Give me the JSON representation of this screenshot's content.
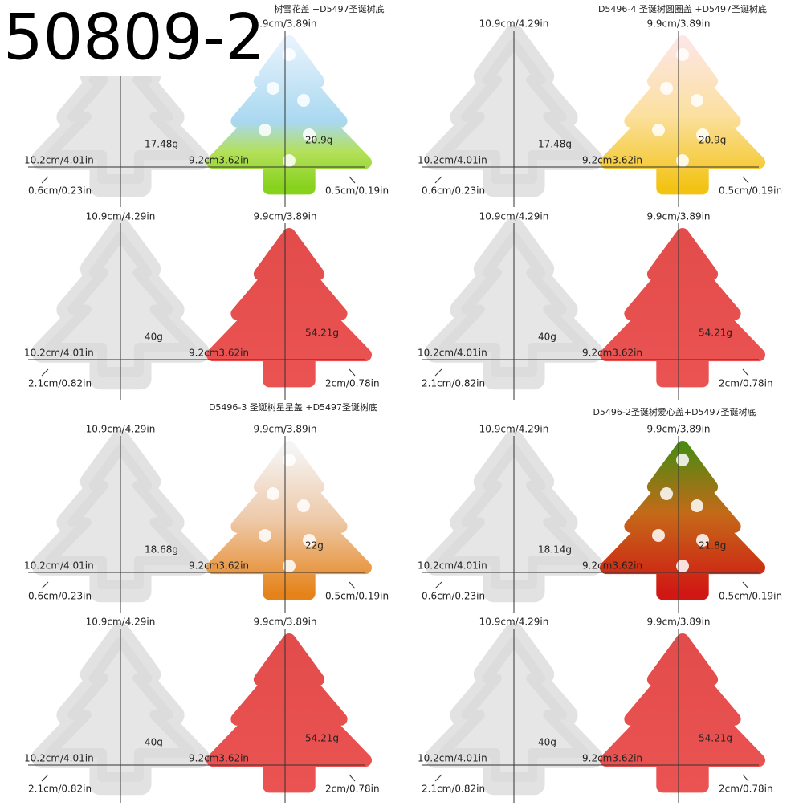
{
  "code": "50809-2",
  "panels": [
    {
      "title": "树雪花盖 +D5497圣诞树底",
      "items": [
        {
          "width": "10.2cm/4.01in",
          "weight": "17.48g",
          "thickness": "0.6cm/0.23in"
        },
        {
          "height": "9.9cm/3.89in",
          "width": "9.2cm3.62in",
          "weight": "20.9g",
          "thickness": "0.5cm/0.19in"
        },
        {
          "height": "10.9cm/4.29in",
          "width": "10.2cm/4.01in",
          "weight": "40g",
          "thickness": "2.1cm/0.82in"
        },
        {
          "height": "9.9cm/3.89in",
          "width": "9.2cm3.62in",
          "weight": "54.21g",
          "thickness": "2cm/0.78in"
        }
      ]
    },
    {
      "title": "D5496-4 圣诞树圆圈盖 +D5497圣诞树底",
      "items": [
        {
          "height": "10.9cm/4.29in",
          "width": "10.2cm/4.01in",
          "weight": "17.48g",
          "thickness": "0.6cm/0.23in"
        },
        {
          "height": "9.9cm/3.89in",
          "width": "9.2cm3.62in",
          "weight": "20.9g",
          "thickness": "0.5cm/0.19in"
        },
        {
          "height": "10.9cm/4.29in",
          "width": "10.2cm/4.01in",
          "weight": "40g",
          "thickness": "2.1cm/0.82in"
        },
        {
          "height": "9.9cm/3.89in",
          "width": "9.2cm3.62in",
          "weight": "54.21g",
          "thickness": "2cm/0.78in"
        }
      ]
    },
    {
      "title": "D5496-3 圣诞树星星盖 +D5497圣诞树底",
      "items": [
        {
          "height": "10.9cm/4.29in",
          "width": "10.2cm/4.01in",
          "weight": "18.68g",
          "thickness": "0.6cm/0.23in"
        },
        {
          "height": "9.9cm/3.89in",
          "width": "9.2cm3.62in",
          "weight": "22g",
          "thickness": "0.5cm/0.19in"
        },
        {
          "height": "10.9cm/4.29in",
          "width": "10.2cm/4.01in",
          "weight": "40g",
          "thickness": "2.1cm/0.82in"
        },
        {
          "height": "9.9cm/3.89in",
          "width": "9.2cm3.62in",
          "weight": "54.21g",
          "thickness": "2cm/0.78in"
        }
      ]
    },
    {
      "title": "D5496-2圣诞树爱心盖+D5497圣诞树底",
      "items": [
        {
          "height": "10.9cm/4.29in",
          "width": "10.2cm/4.01in",
          "weight": "18.14g",
          "thickness": "0.6cm/0.23in"
        },
        {
          "height": "9.9cm/3.89in",
          "width": "9.2cm3.62in",
          "weight": "21.8g",
          "thickness": "0.5cm/0.19in"
        },
        {
          "height": "10.9cm/4.29in",
          "width": "10.2cm/4.01in",
          "weight": "40g",
          "thickness": "2.1cm/0.82in"
        },
        {
          "height": "9.9cm/3.89in",
          "width": "9.2cm3.62in",
          "weight": "54.21g",
          "thickness": "2cm/0.78in"
        }
      ]
    }
  ]
}
